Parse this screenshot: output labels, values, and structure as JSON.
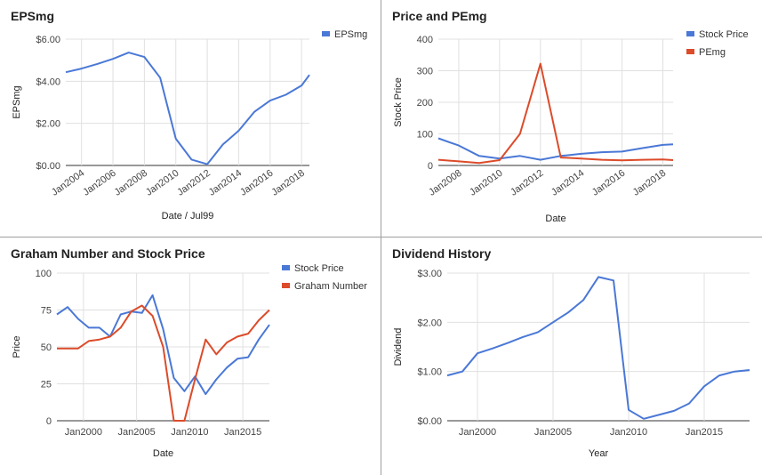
{
  "chart_data": [
    {
      "type": "line",
      "title": "EPSmg",
      "xlabel": "Date / Jul99",
      "ylabel": "EPSmg",
      "ylim": [
        0,
        6
      ],
      "yticks": [
        "$0.00",
        "$2.00",
        "$4.00",
        "$6.00"
      ],
      "xticks": [
        "Jan2004",
        "Jan2006",
        "Jan2008",
        "Jan2010",
        "Jan2012",
        "Jan2014",
        "Jan2016",
        "Jan2018"
      ],
      "x": [
        2003,
        2004,
        2005,
        2006,
        2007,
        2008,
        2009,
        2010,
        2011,
        2012,
        2013,
        2014,
        2015,
        2016,
        2017,
        2018,
        2018.5
      ],
      "series": [
        {
          "name": "EPSmg",
          "color": "#4a78d6",
          "values": [
            4.43,
            4.6,
            4.82,
            5.06,
            5.36,
            5.15,
            4.17,
            1.27,
            0.28,
            0.06,
            1.0,
            1.65,
            2.55,
            3.08,
            3.36,
            3.8,
            4.3
          ]
        }
      ],
      "legend": "top-right"
    },
    {
      "type": "line",
      "title": "Price and PEmg",
      "xlabel": "Date",
      "ylabel": "Stock Price",
      "ylim": [
        0,
        400
      ],
      "yticks": [
        "0",
        "100",
        "200",
        "300",
        "400"
      ],
      "xticks": [
        "Jan2008",
        "Jan2010",
        "Jan2012",
        "Jan2014",
        "Jan2016",
        "Jan2018"
      ],
      "x": [
        2007,
        2008,
        2009,
        2010,
        2011,
        2012,
        2013,
        2014,
        2015,
        2016,
        2017,
        2018,
        2018.5
      ],
      "series": [
        {
          "name": "Stock Price",
          "color": "#4a78d6",
          "values": [
            86,
            63,
            30,
            22,
            30,
            18,
            30,
            37,
            42,
            44,
            55,
            65,
            67
          ]
        },
        {
          "name": "PEmg",
          "color": "#dc4b2a",
          "values": [
            18,
            13,
            8,
            17,
            100,
            322,
            25,
            22,
            18,
            16,
            18,
            19,
            17
          ]
        }
      ],
      "legend": "top-right"
    },
    {
      "type": "line",
      "title": "Graham Number and Stock Price",
      "xlabel": "Date",
      "ylabel": "Price",
      "ylim": [
        0,
        100
      ],
      "yticks": [
        "0",
        "25",
        "50",
        "75",
        "100"
      ],
      "xticks": [
        "Jan2000",
        "Jan2005",
        "Jan2010",
        "Jan2015"
      ],
      "x": [
        1997.5,
        1998.5,
        1999.5,
        2000.5,
        2001.5,
        2002.5,
        2003.5,
        2004.5,
        2005.5,
        2006.5,
        2007.5,
        2008.5,
        2009.5,
        2010.5,
        2011.5,
        2012.5,
        2013.5,
        2014.5,
        2015.5,
        2016.5,
        2017.5
      ],
      "series": [
        {
          "name": "Stock Price",
          "color": "#4a78d6",
          "values": [
            72,
            77,
            69,
            63,
            63,
            57,
            72,
            74,
            73,
            85,
            62,
            29,
            20,
            30,
            18,
            28,
            36,
            42,
            43,
            55,
            65
          ]
        },
        {
          "name": "Graham Number",
          "color": "#dc4b2a",
          "values": [
            49,
            49,
            49,
            54,
            55,
            57,
            63,
            74,
            78,
            71,
            50,
            0,
            0,
            28,
            55,
            45,
            53,
            57,
            59,
            68,
            75
          ]
        }
      ],
      "legend": "top-right"
    },
    {
      "type": "line",
      "title": "Dividend History",
      "xlabel": "Year",
      "ylabel": "Dividend",
      "ylim": [
        0,
        3
      ],
      "yticks": [
        "$0.00",
        "$1.00",
        "$2.00",
        "$3.00"
      ],
      "xticks": [
        "Jan2000",
        "Jan2005",
        "Jan2010",
        "Jan2015"
      ],
      "x": [
        1998,
        1999,
        2000,
        2001,
        2002,
        2003,
        2004,
        2005,
        2006,
        2007,
        2008,
        2009,
        2010,
        2011,
        2012,
        2013,
        2014,
        2015,
        2016,
        2017,
        2018
      ],
      "series": [
        {
          "name": "Dividend",
          "color": "#4a78d6",
          "values": [
            0.92,
            1.0,
            1.37,
            1.47,
            1.58,
            1.7,
            1.8,
            2.0,
            2.2,
            2.45,
            2.92,
            2.85,
            0.22,
            0.04,
            0.12,
            0.2,
            0.35,
            0.7,
            0.92,
            1.0,
            1.03
          ]
        }
      ]
    }
  ]
}
